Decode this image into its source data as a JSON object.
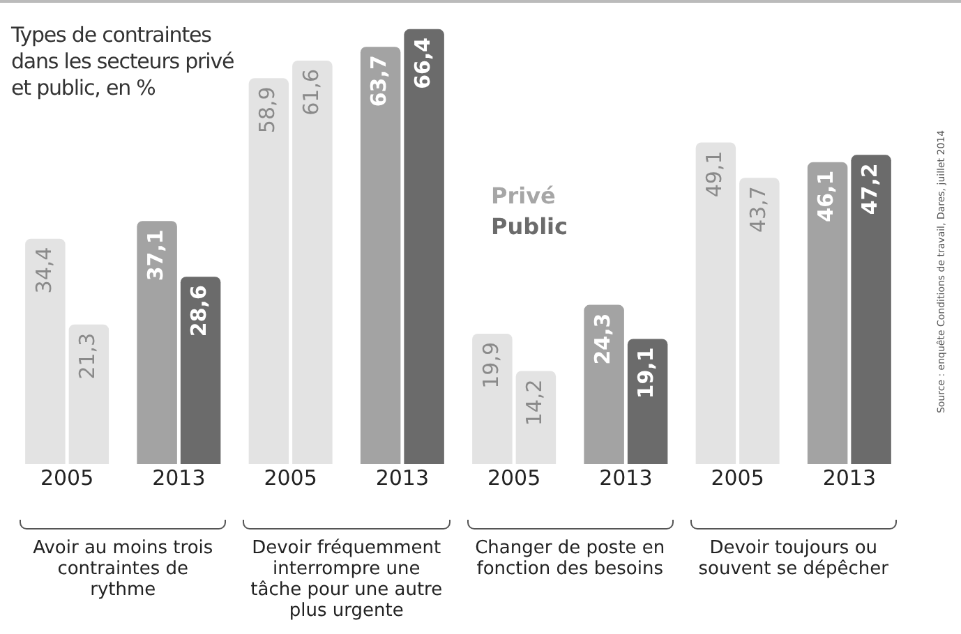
{
  "chart_data": {
    "type": "bar",
    "title": "Types de contraintes dans les secteurs privé et public, en %",
    "categories": [
      "2005",
      "2013",
      "2005",
      "2013",
      "2005",
      "2013",
      "2005",
      "2013"
    ],
    "series": [
      {
        "name": "Privé",
        "color": "#a6a6a6",
        "colors": [
          "#e3e3e3",
          "#a3a3a3",
          "#e3e3e3",
          "#a3a3a3",
          "#e3e3e3",
          "#a3a3a3",
          "#e3e3e3",
          "#a3a3a3"
        ],
        "values": [
          34.4,
          37.1,
          58.9,
          63.7,
          19.9,
          24.3,
          49.1,
          46.1
        ],
        "value_labels": [
          "34,4",
          "37,1",
          "58,9",
          "63,7",
          "19,9",
          "24,3",
          "49,1",
          "46,1"
        ]
      },
      {
        "name": "Public",
        "color": "#6b6b6b",
        "colors": [
          "#e3e3e3",
          "#6b6b6b",
          "#e3e3e3",
          "#6b6b6b",
          "#e3e3e3",
          "#6b6b6b",
          "#e3e3e3",
          "#6b6b6b"
        ],
        "values": [
          21.3,
          28.6,
          61.6,
          66.4,
          14.2,
          19.1,
          43.7,
          47.2
        ],
        "value_labels": [
          "21,3",
          "28,6",
          "61,6",
          "66,4",
          "14,2",
          "19,1",
          "43,7",
          "47,2"
        ]
      }
    ],
    "annotations": [
      "Avoir au moins trois contraintes de rythme",
      "Devoir fréquemment interrompre une tâche pour une autre plus urgente",
      "Changer de poste en fonction des besoins",
      "Devoir toujours ou souvent se dépêcher",
      "Source : enquête Conditions de travail, Dares, juillet 2014"
    ],
    "legend": "top",
    "grid": false
  }
}
